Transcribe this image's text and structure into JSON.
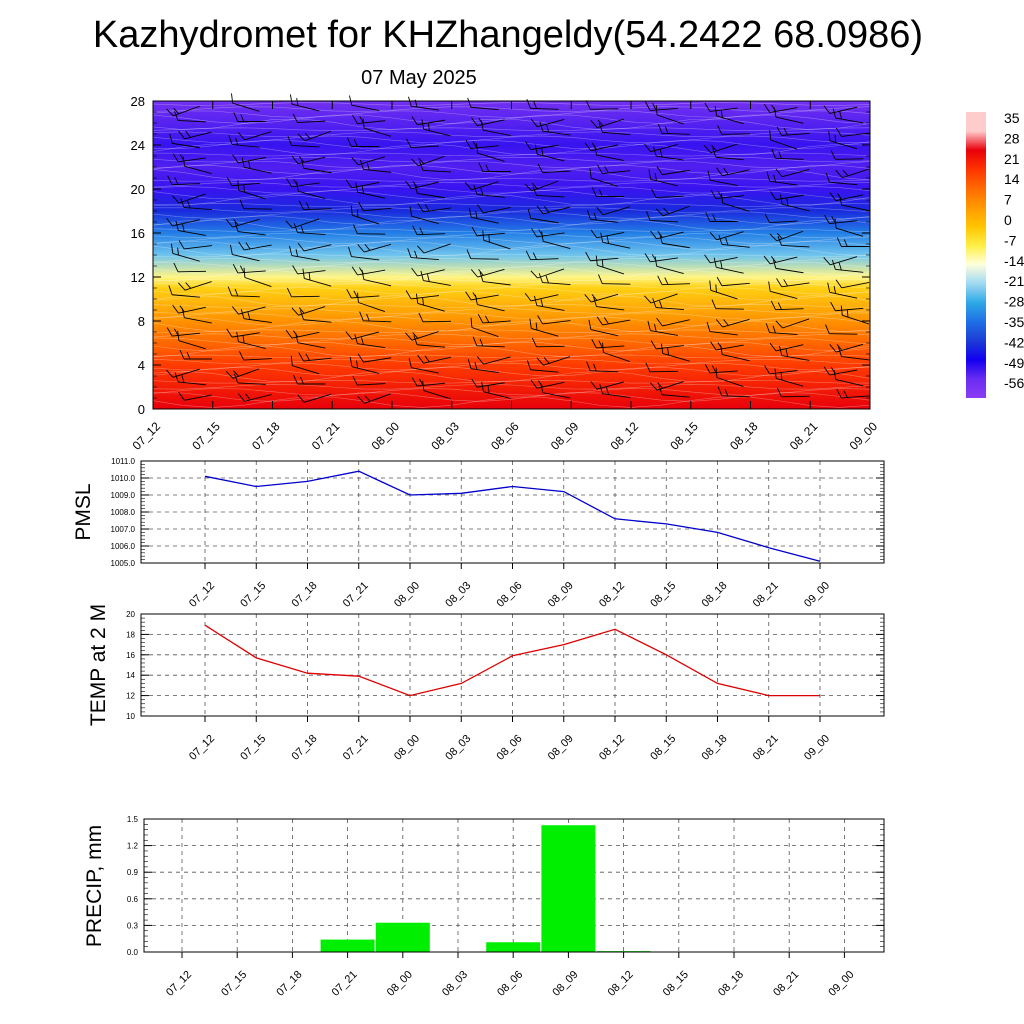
{
  "header": {
    "title": "Kazhydromet for KHZhangeldy(54.2422 68.0986)",
    "date": "07 May 2025"
  },
  "time_labels": [
    "07_12",
    "07_15",
    "07_18",
    "07_21",
    "08_00",
    "08_03",
    "08_06",
    "08_09",
    "08_12",
    "08_15",
    "08_18",
    "08_21",
    "09_00"
  ],
  "chart_data": [
    {
      "type": "heatmap",
      "name": "cross-section",
      "y_ticks": [
        "0",
        "4",
        "8",
        "12",
        "16",
        "20",
        "24",
        "28"
      ],
      "ylim": [
        0,
        28
      ],
      "colorbar": {
        "labels": [
          "35",
          "28",
          "21",
          "14",
          "7",
          "0",
          "-7",
          "-14",
          "-21",
          "-28",
          "-35",
          "-42",
          "-49",
          "-56"
        ]
      },
      "profile": [
        {
          "y": 0,
          "value": 28
        },
        {
          "y": 4,
          "value": 20
        },
        {
          "y": 8,
          "value": 8
        },
        {
          "y": 11,
          "value": -2
        },
        {
          "y": 12,
          "value": -10
        },
        {
          "y": 14,
          "value": -24
        },
        {
          "y": 16,
          "value": -33
        },
        {
          "y": 18,
          "value": -44
        },
        {
          "y": 20,
          "value": -52
        },
        {
          "y": 22,
          "value": -54
        },
        {
          "y": 24,
          "value": -52
        },
        {
          "y": 28,
          "value": -58
        }
      ],
      "palette": [
        {
          "value": 35,
          "color": "#ffcccc"
        },
        {
          "value": 28,
          "color": "#e8000b"
        },
        {
          "value": 21,
          "color": "#ff3300"
        },
        {
          "value": 14,
          "color": "#ff6a00"
        },
        {
          "value": 7,
          "color": "#ff9900"
        },
        {
          "value": 0,
          "color": "#ffc400"
        },
        {
          "value": -7,
          "color": "#ffee44"
        },
        {
          "value": -14,
          "color": "#ffffdd"
        },
        {
          "value": -21,
          "color": "#9fd9f2"
        },
        {
          "value": -28,
          "color": "#2ea8e6"
        },
        {
          "value": -35,
          "color": "#1f6fe6"
        },
        {
          "value": -42,
          "color": "#1c3cd6"
        },
        {
          "value": -49,
          "color": "#1200f0"
        },
        {
          "value": -56,
          "color": "#6a2cf0"
        },
        {
          "value": -63,
          "color": "#8a3cf5"
        }
      ]
    },
    {
      "type": "line",
      "name": "pmsl",
      "ylabel": "PMSL",
      "y_ticks": [
        "1005.0",
        "1006.0",
        "1007.0",
        "1008.0",
        "1009.0",
        "1010.0",
        "1011.0"
      ],
      "ylim": [
        1005,
        1011
      ],
      "color": "#0000cc",
      "values": [
        1010.1,
        1009.5,
        1009.8,
        1010.4,
        1009.0,
        1009.1,
        1009.5,
        1009.2,
        1007.6,
        1007.3,
        1006.8,
        1005.9,
        1005.1
      ]
    },
    {
      "type": "line",
      "name": "temp2m",
      "ylabel": "TEMP at 2 M",
      "y_ticks": [
        "10",
        "12",
        "14",
        "16",
        "18",
        "20"
      ],
      "ylim": [
        10,
        20
      ],
      "color": "#dd0000",
      "values": [
        18.9,
        15.7,
        14.2,
        13.9,
        12.0,
        13.2,
        15.9,
        17.0,
        18.5,
        16.0,
        13.2,
        12.0,
        12.0
      ]
    },
    {
      "type": "bar",
      "name": "precip",
      "ylabel": "PRECIP, mm",
      "y_ticks": [
        "0.0",
        "0.3",
        "0.6",
        "0.9",
        "1.2",
        "1.5"
      ],
      "ylim": [
        0,
        1.5
      ],
      "color": "#00ee00",
      "values": [
        0,
        0,
        0,
        0.14,
        0.33,
        0,
        0.11,
        1.43,
        0.01,
        0,
        0,
        0,
        0
      ]
    }
  ]
}
